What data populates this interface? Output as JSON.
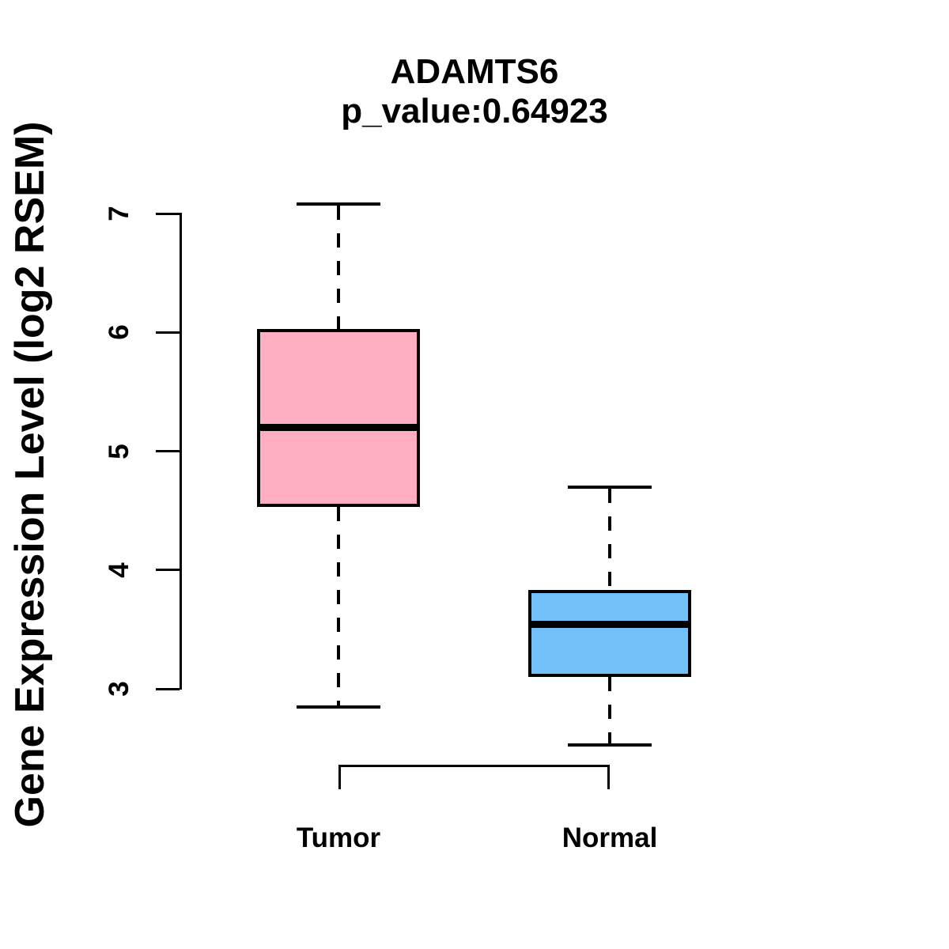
{
  "header": {
    "title": "ADAMTS6",
    "subtitle": "p_value:0.64923"
  },
  "colors": {
    "tumor_fill": "#FFAEC2",
    "normal_fill": "#73BFF8",
    "line": "#000000",
    "background": "#FFFFFF"
  },
  "chart_data": {
    "type": "boxplot",
    "title": "ADAMTS6",
    "subtitle": "p_value:0.64923",
    "xlabel": "",
    "ylabel": "Gene Expression Level (log2 RSEM)",
    "ylim": [
      3,
      7
    ],
    "yticks": [
      3,
      4,
      5,
      6,
      7
    ],
    "grid": false,
    "legend_position": "none",
    "categories": [
      "Tumor",
      "Normal"
    ],
    "series": [
      {
        "name": "Tumor",
        "whisker_low": 2.85,
        "q1": 4.53,
        "median": 5.2,
        "q3": 6.03,
        "whisker_high": 7.08,
        "fill": "#FFAEC2"
      },
      {
        "name": "Normal",
        "whisker_low": 2.53,
        "q1": 3.1,
        "median": 3.54,
        "q3": 3.83,
        "whisker_high": 4.7,
        "fill": "#73BFF8"
      }
    ]
  }
}
